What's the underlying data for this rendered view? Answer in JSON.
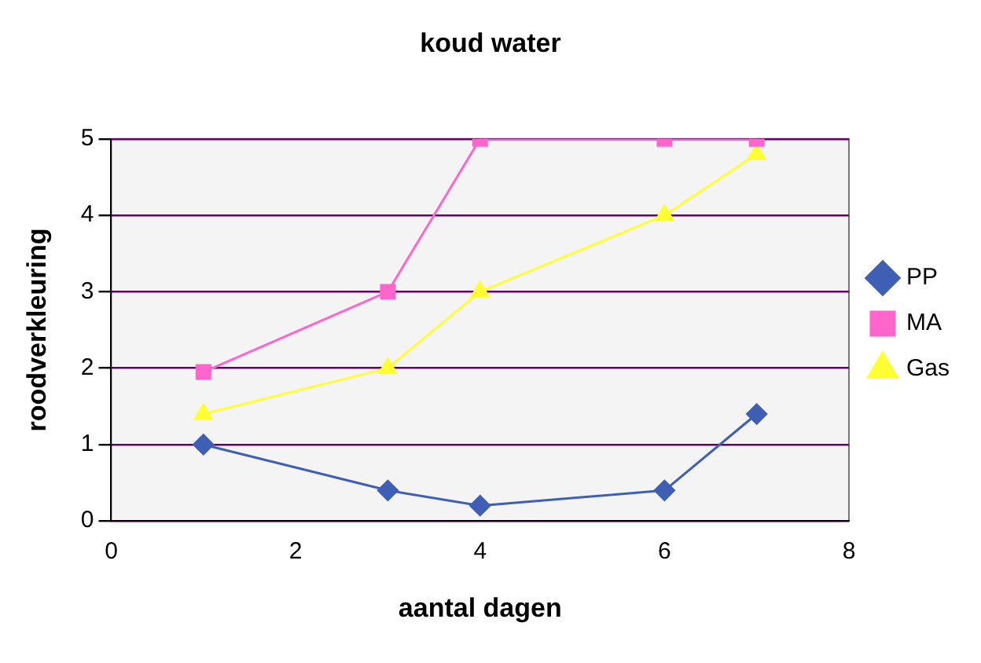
{
  "chart_data": {
    "type": "line",
    "title": "koud water",
    "xlabel": "aantal dagen",
    "ylabel": "roodverkleuring",
    "x": [
      1,
      3,
      4,
      6,
      7
    ],
    "series": [
      {
        "name": "PP",
        "color": "#3f5fb5",
        "marker": "diamond",
        "values": [
          1,
          0.4,
          0.2,
          0.4,
          1.4
        ]
      },
      {
        "name": "MA",
        "color": "#ff66cc",
        "marker": "square",
        "values": [
          1.95,
          3,
          5,
          5,
          5
        ]
      },
      {
        "name": "Gas",
        "color": "#ffff33",
        "marker": "triangle",
        "values": [
          1.4,
          2,
          3,
          4,
          4.8
        ]
      }
    ],
    "xlim": [
      0,
      8
    ],
    "xticks": [
      0,
      2,
      4,
      6,
      8
    ],
    "ylim": [
      0,
      5
    ],
    "yticks": [
      0,
      1,
      2,
      3,
      4,
      5
    ],
    "grid": "y",
    "legend": "right",
    "line_style": "solid"
  }
}
